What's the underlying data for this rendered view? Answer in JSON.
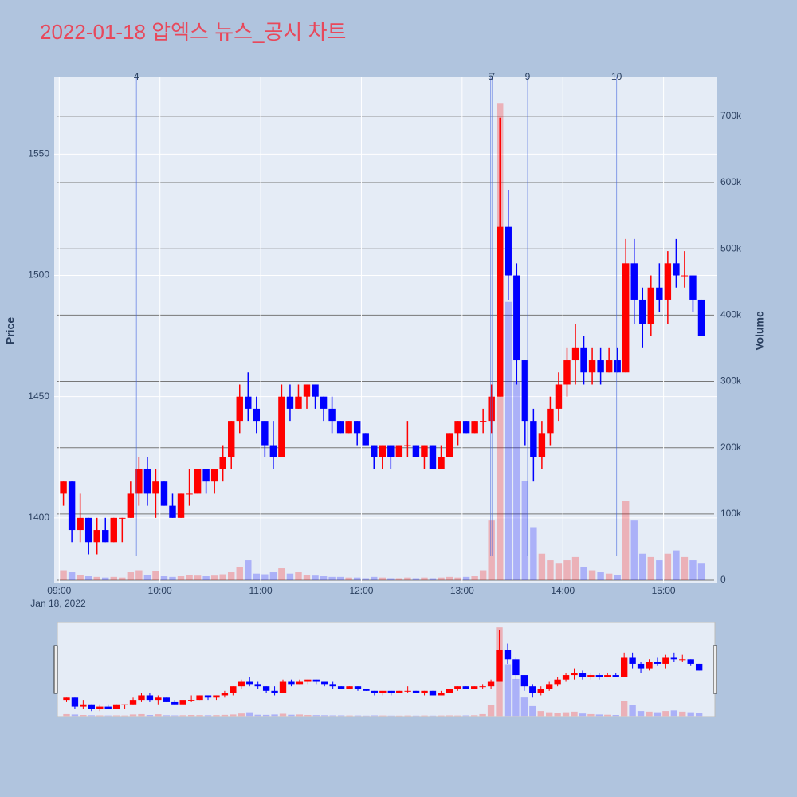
{
  "chart_data": {
    "type": "candlestick",
    "title": "2022-01-18 압엑스 뉴스_공시 차트",
    "ylabel": "Price",
    "y2label": "Volume",
    "x_date_label": "Jan 18, 2022",
    "x": [
      "09:00",
      "09:05",
      "09:10",
      "09:15",
      "09:20",
      "09:25",
      "09:30",
      "09:35",
      "09:40",
      "09:45",
      "09:50",
      "09:55",
      "10:00",
      "10:05",
      "10:10",
      "10:15",
      "10:20",
      "10:25",
      "10:30",
      "10:35",
      "10:40",
      "10:45",
      "10:50",
      "10:55",
      "11:00",
      "11:05",
      "11:10",
      "11:15",
      "11:20",
      "11:25",
      "11:30",
      "11:35",
      "11:40",
      "11:45",
      "11:50",
      "11:55",
      "12:00",
      "12:05",
      "12:10",
      "12:15",
      "12:20",
      "12:25",
      "12:30",
      "12:35",
      "12:40",
      "12:45",
      "12:50",
      "12:55",
      "13:00",
      "13:05",
      "13:10",
      "13:15",
      "13:20",
      "13:25",
      "13:30",
      "13:35",
      "13:40",
      "13:45",
      "13:50",
      "13:55",
      "14:00",
      "14:05",
      "14:10",
      "14:15",
      "14:20",
      "14:25",
      "14:30",
      "14:35",
      "14:40",
      "14:45",
      "14:50",
      "14:55",
      "15:00",
      "15:05",
      "15:10",
      "15:15",
      "15:20"
    ],
    "open": [
      1410,
      1415,
      1395,
      1400,
      1390,
      1395,
      1390,
      1400,
      1400,
      1410,
      1420,
      1410,
      1415,
      1405,
      1400,
      1410,
      1410,
      1420,
      1415,
      1420,
      1425,
      1440,
      1450,
      1445,
      1440,
      1430,
      1425,
      1450,
      1445,
      1450,
      1455,
      1450,
      1445,
      1440,
      1435,
      1440,
      1435,
      1430,
      1425,
      1430,
      1425,
      1430,
      1430,
      1425,
      1430,
      1420,
      1425,
      1435,
      1440,
      1435,
      1440,
      1440,
      1450,
      1520,
      1500,
      1465,
      1440,
      1425,
      1435,
      1445,
      1455,
      1465,
      1470,
      1460,
      1465,
      1460,
      1465,
      1460,
      1505,
      1490,
      1480,
      1495,
      1490,
      1505,
      1500,
      1500,
      1490
    ],
    "high": [
      1415,
      1415,
      1410,
      1400,
      1400,
      1400,
      1400,
      1400,
      1415,
      1425,
      1425,
      1420,
      1415,
      1410,
      1410,
      1420,
      1420,
      1420,
      1420,
      1430,
      1440,
      1455,
      1460,
      1450,
      1440,
      1440,
      1455,
      1455,
      1455,
      1455,
      1455,
      1450,
      1450,
      1440,
      1440,
      1440,
      1435,
      1430,
      1430,
      1430,
      1430,
      1440,
      1430,
      1430,
      1430,
      1430,
      1435,
      1440,
      1440,
      1440,
      1445,
      1455,
      1565,
      1535,
      1505,
      1465,
      1445,
      1440,
      1450,
      1460,
      1470,
      1480,
      1475,
      1470,
      1470,
      1470,
      1470,
      1515,
      1515,
      1495,
      1500,
      1505,
      1510,
      1515,
      1510,
      1500,
      1490
    ],
    "low": [
      1405,
      1390,
      1390,
      1385,
      1385,
      1390,
      1390,
      1390,
      1400,
      1405,
      1405,
      1400,
      1405,
      1400,
      1400,
      1405,
      1410,
      1410,
      1410,
      1415,
      1420,
      1435,
      1440,
      1435,
      1425,
      1420,
      1425,
      1440,
      1445,
      1445,
      1445,
      1440,
      1435,
      1435,
      1435,
      1430,
      1430,
      1420,
      1420,
      1420,
      1425,
      1425,
      1425,
      1420,
      1420,
      1420,
      1425,
      1430,
      1435,
      1435,
      1435,
      1435,
      1450,
      1490,
      1455,
      1430,
      1415,
      1420,
      1430,
      1440,
      1450,
      1455,
      1455,
      1455,
      1455,
      1460,
      1460,
      1460,
      1480,
      1470,
      1475,
      1485,
      1480,
      1495,
      1495,
      1485,
      1475
    ],
    "close": [
      1415,
      1395,
      1400,
      1390,
      1395,
      1390,
      1400,
      1400,
      1410,
      1420,
      1410,
      1415,
      1405,
      1400,
      1410,
      1410,
      1420,
      1415,
      1420,
      1425,
      1440,
      1450,
      1445,
      1440,
      1430,
      1425,
      1450,
      1445,
      1450,
      1455,
      1450,
      1445,
      1440,
      1435,
      1440,
      1435,
      1430,
      1425,
      1430,
      1425,
      1430,
      1430,
      1425,
      1430,
      1420,
      1425,
      1435,
      1440,
      1435,
      1440,
      1440,
      1450,
      1520,
      1500,
      1465,
      1440,
      1425,
      1435,
      1445,
      1455,
      1465,
      1470,
      1460,
      1465,
      1460,
      1465,
      1460,
      1505,
      1490,
      1480,
      1495,
      1490,
      1505,
      1500,
      1500,
      1490,
      1475
    ],
    "volume": [
      15000,
      12000,
      8000,
      6000,
      5000,
      4000,
      5000,
      4000,
      12000,
      15000,
      8000,
      14000,
      6000,
      5000,
      6000,
      8000,
      7000,
      6000,
      7000,
      9000,
      12000,
      20000,
      30000,
      10000,
      9000,
      12000,
      18000,
      10000,
      12000,
      8000,
      7000,
      6000,
      5000,
      5000,
      4000,
      4000,
      3000,
      5000,
      4000,
      3000,
      3000,
      4000,
      3000,
      4000,
      3000,
      4000,
      5000,
      4000,
      5000,
      6000,
      15000,
      90000,
      720000,
      420000,
      300000,
      150000,
      80000,
      40000,
      30000,
      25000,
      30000,
      35000,
      20000,
      15000,
      12000,
      10000,
      8000,
      120000,
      90000,
      40000,
      35000,
      30000,
      40000,
      45000,
      35000,
      30000,
      25000
    ],
    "up_color": "#ff0000",
    "down_color": "#0000ff",
    "xlim": [
      "08:57",
      "15:32"
    ],
    "xticks": [
      "09:00",
      "10:00",
      "11:00",
      "12:00",
      "13:00",
      "14:00",
      "15:00"
    ],
    "ylim": [
      1373,
      1582
    ],
    "yticks": [
      1400,
      1450,
      1500,
      1550
    ],
    "y2lim": [
      -4800,
      760000
    ],
    "y2ticks": [
      0,
      {
        "value": 100000,
        "label": "100k"
      },
      {
        "value": 200000,
        "label": "200k"
      },
      {
        "value": 300000,
        "label": "300k"
      },
      {
        "value": 400000,
        "label": "400k"
      },
      {
        "value": 500000,
        "label": "500k"
      },
      {
        "value": 600000,
        "label": "600k"
      },
      {
        "value": 700000,
        "label": "700k"
      }
    ],
    "grid": true,
    "news": [
      {
        "x": "09:46",
        "label": "4"
      },
      {
        "x": "13:17",
        "label": "5"
      },
      {
        "x": "13:18",
        "label": "7"
      },
      {
        "x": "13:39",
        "label": "9"
      },
      {
        "x": "14:32",
        "label": "10"
      }
    ],
    "rangeslider": true
  }
}
